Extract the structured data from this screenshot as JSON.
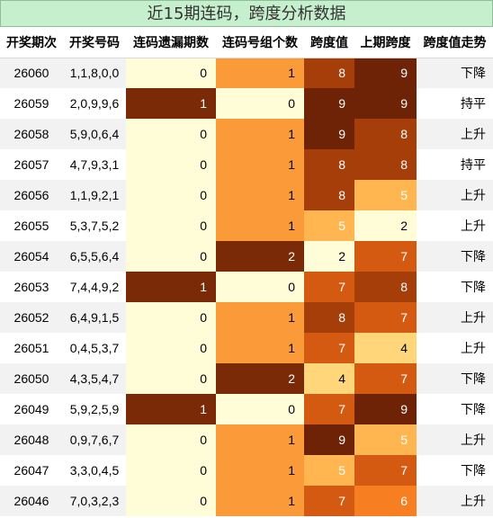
{
  "title": "近15期连码，跨度分析数据",
  "headers": [
    "开奖期次",
    "开奖号码",
    "连码遗漏期数",
    "连码号组个数",
    "跨度值",
    "上期跨度",
    "跨度值走势"
  ],
  "rows": [
    {
      "issue": "26060",
      "numbers": "1,1,8,0,0",
      "miss": "0",
      "groups": "1",
      "span": "8",
      "prev_span": "9",
      "trend": "下降"
    },
    {
      "issue": "26059",
      "numbers": "2,0,9,9,6",
      "miss": "1",
      "groups": "0",
      "span": "9",
      "prev_span": "9",
      "trend": "持平"
    },
    {
      "issue": "26058",
      "numbers": "5,9,0,6,4",
      "miss": "0",
      "groups": "1",
      "span": "9",
      "prev_span": "8",
      "trend": "上升"
    },
    {
      "issue": "26057",
      "numbers": "4,7,9,3,1",
      "miss": "0",
      "groups": "1",
      "span": "8",
      "prev_span": "8",
      "trend": "持平"
    },
    {
      "issue": "26056",
      "numbers": "1,1,9,2,1",
      "miss": "0",
      "groups": "1",
      "span": "8",
      "prev_span": "5",
      "trend": "上升"
    },
    {
      "issue": "26055",
      "numbers": "5,3,7,5,2",
      "miss": "0",
      "groups": "1",
      "span": "5",
      "prev_span": "2",
      "trend": "上升"
    },
    {
      "issue": "26054",
      "numbers": "6,5,5,6,4",
      "miss": "0",
      "groups": "2",
      "span": "2",
      "prev_span": "7",
      "trend": "下降"
    },
    {
      "issue": "26053",
      "numbers": "7,4,4,9,2",
      "miss": "1",
      "groups": "0",
      "span": "7",
      "prev_span": "8",
      "trend": "下降"
    },
    {
      "issue": "26052",
      "numbers": "6,4,9,1,5",
      "miss": "0",
      "groups": "1",
      "span": "8",
      "prev_span": "7",
      "trend": "上升"
    },
    {
      "issue": "26051",
      "numbers": "0,4,5,3,7",
      "miss": "0",
      "groups": "1",
      "span": "7",
      "prev_span": "4",
      "trend": "上升"
    },
    {
      "issue": "26050",
      "numbers": "4,3,5,4,7",
      "miss": "0",
      "groups": "2",
      "span": "4",
      "prev_span": "7",
      "trend": "下降"
    },
    {
      "issue": "26049",
      "numbers": "5,9,2,5,9",
      "miss": "1",
      "groups": "0",
      "span": "7",
      "prev_span": "9",
      "trend": "下降"
    },
    {
      "issue": "26048",
      "numbers": "0,9,7,6,7",
      "miss": "0",
      "groups": "1",
      "span": "9",
      "prev_span": "5",
      "trend": "上升"
    },
    {
      "issue": "26047",
      "numbers": "3,3,0,4,5",
      "miss": "0",
      "groups": "1",
      "span": "5",
      "prev_span": "7",
      "trend": "下降"
    },
    {
      "issue": "26046",
      "numbers": "7,0,3,2,3",
      "miss": "0",
      "groups": "1",
      "span": "7",
      "prev_span": "6",
      "trend": "上升"
    }
  ],
  "colors": {
    "title_bg": "#c6efce",
    "miss": {
      "0": "#fffdd8",
      "1": "#7a2a06"
    },
    "groups": {
      "0": "#fffdd8",
      "1": "#fa9a38",
      "2": "#7a2a06"
    },
    "span": {
      "2": "#fffdd8",
      "4": "#ffd77a",
      "5": "#ffb550",
      "6": "#f77f22",
      "7": "#d45a12",
      "8": "#a63e0a",
      "9": "#6e2306"
    },
    "text_dark": "#000000",
    "text_light": "#ffffff"
  }
}
